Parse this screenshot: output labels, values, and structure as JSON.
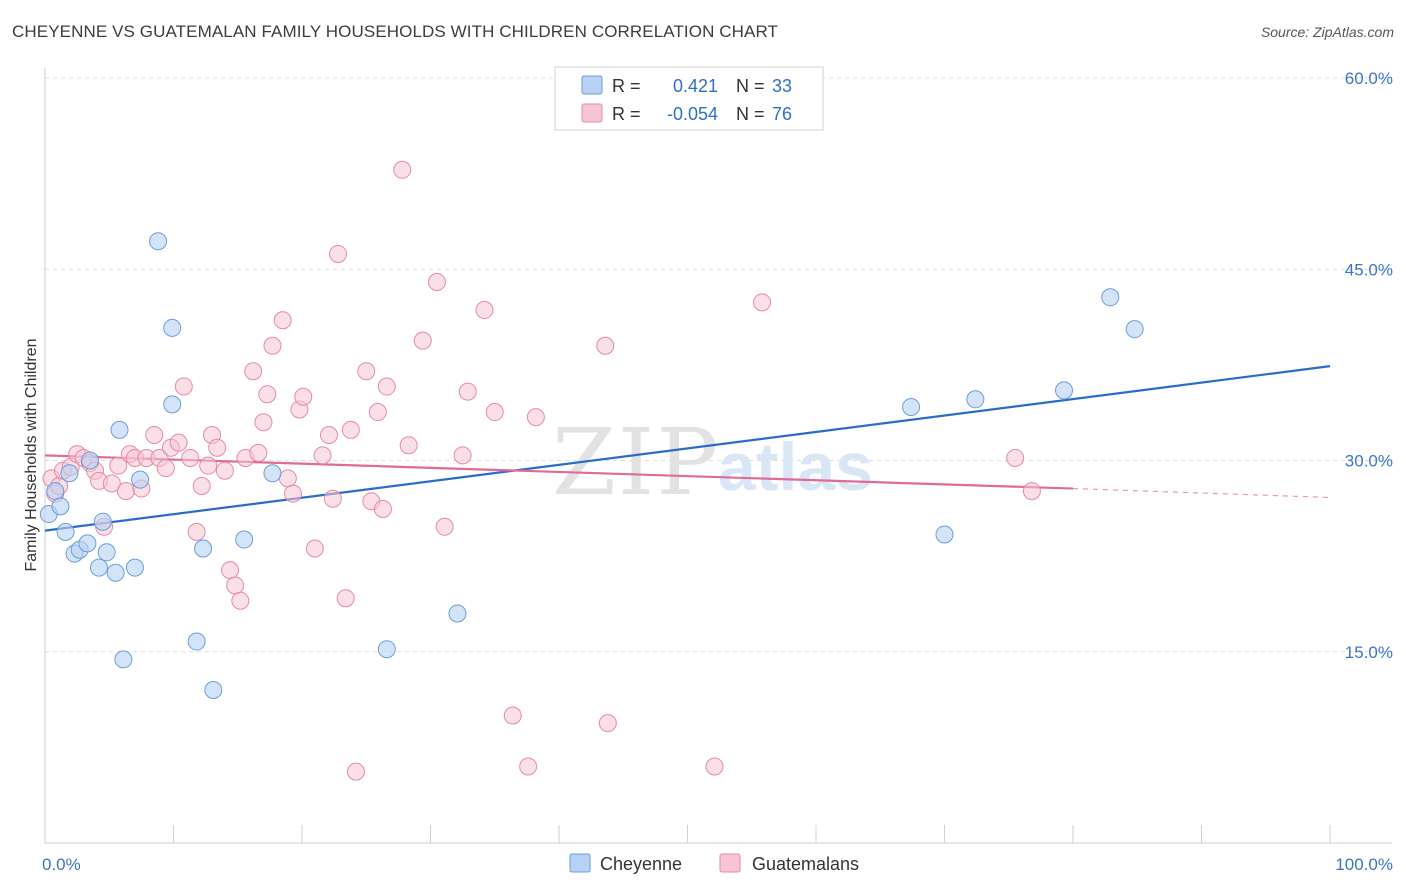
{
  "title": "CHEYENNE VS GUATEMALAN FAMILY HOUSEHOLDS WITH CHILDREN CORRELATION CHART",
  "source": "Source: ZipAtlas.com",
  "watermark": {
    "zip": "ZIP",
    "atlas": "atlas"
  },
  "colors": {
    "cheyenne_fill": "#b7d2f3",
    "cheyenne_stroke": "#6b9ed8",
    "cheyenne_line": "#2a6cc9",
    "guatemalan_fill": "#f7c4d3",
    "guatemalan_stroke": "#e68aa8",
    "guatemalan_line": "#e06b96",
    "tick_label": "#3a76c8",
    "grid": "#dcdcdc"
  },
  "legend": {
    "rows": [
      {
        "r_label": "R =",
        "r_value": "0.421",
        "n_label": "N =",
        "n_value": "33"
      },
      {
        "r_label": "R =",
        "r_value": "-0.054",
        "n_label": "N =",
        "n_value": "76"
      }
    ]
  },
  "bottom_legend": [
    "Cheyenne",
    "Guatemalans"
  ],
  "chart_data": {
    "type": "scatter",
    "title": "CHEYENNE VS GUATEMALAN FAMILY HOUSEHOLDS WITH CHILDREN CORRELATION CHART",
    "xlabel": "",
    "ylabel": "Family Households with Children",
    "xlim": [
      0,
      100
    ],
    "ylim": [
      0,
      60
    ],
    "x_tick_labels": [
      "0.0%",
      "100.0%"
    ],
    "y_ticks": [
      15,
      30,
      45,
      60
    ],
    "y_tick_labels": [
      "15.0%",
      "30.0%",
      "45.0%",
      "60.0%"
    ],
    "grid": true,
    "legend_position": "top-center",
    "series": [
      {
        "name": "Cheyenne",
        "r": 0.421,
        "n": 33,
        "trend": {
          "x": [
            0,
            100
          ],
          "y": [
            24.5,
            37.4
          ]
        },
        "points": [
          [
            0.3,
            25.8
          ],
          [
            0.8,
            27.6
          ],
          [
            1.2,
            26.4
          ],
          [
            1.6,
            24.4
          ],
          [
            1.9,
            29.0
          ],
          [
            2.3,
            22.7
          ],
          [
            2.7,
            23.0
          ],
          [
            3.3,
            23.5
          ],
          [
            3.5,
            30.0
          ],
          [
            4.2,
            21.6
          ],
          [
            4.5,
            25.2
          ],
          [
            4.8,
            22.8
          ],
          [
            5.5,
            21.2
          ],
          [
            5.8,
            32.4
          ],
          [
            6.1,
            14.4
          ],
          [
            7.0,
            21.6
          ],
          [
            7.4,
            28.5
          ],
          [
            8.8,
            47.2
          ],
          [
            9.9,
            40.4
          ],
          [
            9.9,
            34.4
          ],
          [
            11.8,
            15.8
          ],
          [
            12.3,
            23.1
          ],
          [
            13.1,
            12.0
          ],
          [
            15.5,
            23.8
          ],
          [
            17.7,
            29.0
          ],
          [
            26.6,
            15.2
          ],
          [
            32.1,
            18.0
          ],
          [
            67.4,
            34.2
          ],
          [
            70.0,
            24.2
          ],
          [
            72.4,
            34.8
          ],
          [
            79.3,
            35.5
          ],
          [
            82.9,
            42.8
          ],
          [
            84.8,
            40.3
          ]
        ]
      },
      {
        "name": "Guatemalans",
        "r": -0.054,
        "n": 76,
        "trend": {
          "x": [
            0,
            80
          ],
          "y": [
            30.4,
            27.8
          ]
        },
        "trend_dashed": {
          "x": [
            80,
            100
          ],
          "y": [
            27.8,
            27.1
          ]
        },
        "points": [
          [
            0.5,
            28.6
          ],
          [
            0.8,
            27.4
          ],
          [
            1.1,
            28.0
          ],
          [
            1.4,
            29.2
          ],
          [
            2.0,
            29.5
          ],
          [
            2.5,
            30.5
          ],
          [
            3.0,
            30.2
          ],
          [
            3.5,
            29.8
          ],
          [
            3.9,
            29.2
          ],
          [
            4.2,
            28.4
          ],
          [
            4.6,
            24.8
          ],
          [
            5.2,
            28.2
          ],
          [
            5.7,
            29.6
          ],
          [
            6.3,
            27.6
          ],
          [
            6.6,
            30.5
          ],
          [
            7.0,
            30.2
          ],
          [
            7.5,
            27.8
          ],
          [
            7.9,
            30.2
          ],
          [
            8.5,
            32.0
          ],
          [
            8.9,
            30.2
          ],
          [
            9.4,
            29.4
          ],
          [
            9.8,
            31.0
          ],
          [
            10.4,
            31.4
          ],
          [
            10.8,
            35.8
          ],
          [
            11.3,
            30.2
          ],
          [
            11.8,
            24.4
          ],
          [
            12.2,
            28.0
          ],
          [
            12.7,
            29.6
          ],
          [
            13.0,
            32.0
          ],
          [
            13.4,
            31.0
          ],
          [
            14.0,
            29.2
          ],
          [
            14.4,
            21.4
          ],
          [
            14.8,
            20.2
          ],
          [
            15.2,
            19.0
          ],
          [
            15.6,
            30.2
          ],
          [
            16.2,
            37.0
          ],
          [
            16.6,
            30.6
          ],
          [
            17.0,
            33.0
          ],
          [
            17.3,
            35.2
          ],
          [
            17.7,
            39.0
          ],
          [
            18.5,
            41.0
          ],
          [
            18.9,
            28.6
          ],
          [
            19.3,
            27.4
          ],
          [
            19.8,
            34.0
          ],
          [
            20.1,
            35.0
          ],
          [
            21.0,
            23.1
          ],
          [
            21.6,
            30.4
          ],
          [
            22.1,
            32.0
          ],
          [
            22.4,
            27.0
          ],
          [
            22.8,
            46.2
          ],
          [
            23.4,
            19.2
          ],
          [
            23.8,
            32.4
          ],
          [
            24.2,
            5.6
          ],
          [
            25.0,
            37.0
          ],
          [
            25.4,
            26.8
          ],
          [
            25.9,
            33.8
          ],
          [
            26.3,
            26.2
          ],
          [
            26.6,
            35.8
          ],
          [
            27.8,
            52.8
          ],
          [
            28.3,
            31.2
          ],
          [
            29.4,
            39.4
          ],
          [
            30.5,
            44.0
          ],
          [
            31.1,
            24.8
          ],
          [
            32.5,
            30.4
          ],
          [
            32.9,
            35.4
          ],
          [
            34.2,
            41.8
          ],
          [
            35.0,
            33.8
          ],
          [
            36.4,
            10.0
          ],
          [
            37.6,
            6.0
          ],
          [
            38.2,
            33.4
          ],
          [
            43.6,
            39.0
          ],
          [
            43.8,
            9.4
          ],
          [
            52.1,
            6.0
          ],
          [
            55.8,
            42.4
          ],
          [
            75.5,
            30.2
          ],
          [
            76.8,
            27.6
          ]
        ]
      }
    ]
  }
}
